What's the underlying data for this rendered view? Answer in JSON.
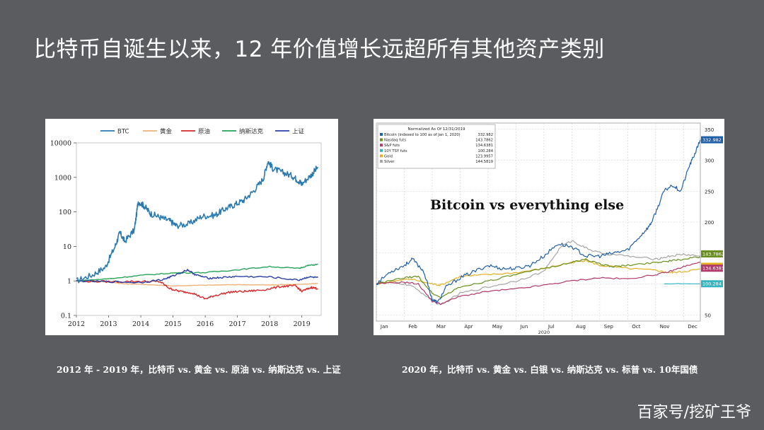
{
  "slide": {
    "title": "比特币自诞生以来，12 年价值增长远超所有其他资产类别",
    "caption_left": "2012 年 - 2019 年，比特币 vs. 黄金 vs. 原油 vs. 纳斯达克 vs. 上证",
    "caption_right": "2020 年，比特币 vs. 黄金 vs. 白银 vs. 纳斯达克 vs. 标普 vs. 10年国债",
    "watermark": "百家号/挖矿王爷"
  },
  "chart_data": [
    {
      "type": "line",
      "yscale": "log",
      "ylim": [
        0.1,
        10000
      ],
      "yticks": [
        "10000",
        "1000",
        "100",
        "10",
        "1",
        "0.1"
      ],
      "ytick_values": [
        10000,
        1000,
        100,
        10,
        1,
        0.1
      ],
      "xlim": [
        2012,
        2019.6
      ],
      "xticks": [
        "2012",
        "2013",
        "2014",
        "2015",
        "2016",
        "2017",
        "2018",
        "2019"
      ],
      "xtick_values": [
        2012,
        2013,
        2014,
        2015,
        2016,
        2017,
        2018,
        2019
      ],
      "legend_position": "top",
      "series": [
        {
          "name": "BTC",
          "color": "#2a7ab0",
          "x": [
            2012,
            2012.5,
            2012.9,
            2013.2,
            2013.35,
            2013.5,
            2013.8,
            2013.92,
            2014.1,
            2014.3,
            2014.6,
            2014.9,
            2015.1,
            2015.5,
            2015.9,
            2016.3,
            2016.6,
            2016.9,
            2017.2,
            2017.5,
            2017.8,
            2017.95,
            2018.1,
            2018.4,
            2018.7,
            2018.9,
            2019.0,
            2019.3,
            2019.5
          ],
          "values": [
            1.0,
            1.5,
            2.5,
            10,
            25,
            14,
            30,
            200,
            150,
            90,
            70,
            55,
            40,
            45,
            75,
            80,
            120,
            160,
            220,
            400,
            900,
            3000,
            1800,
            1400,
            1100,
            800,
            650,
            1200,
            2000
          ]
        },
        {
          "name": "黄金",
          "color": "#f0b27a",
          "x": [
            2012,
            2013,
            2013.5,
            2014,
            2015,
            2016,
            2017,
            2018,
            2019,
            2019.5
          ],
          "values": [
            1.0,
            0.95,
            0.82,
            0.8,
            0.72,
            0.75,
            0.78,
            0.76,
            0.8,
            0.85
          ]
        },
        {
          "name": "原油",
          "color": "#d62728",
          "x": [
            2012,
            2013,
            2014,
            2014.6,
            2014.9,
            2015.2,
            2015.6,
            2016.0,
            2016.3,
            2016.8,
            2017.3,
            2017.8,
            2018.4,
            2018.8,
            2019.0,
            2019.3,
            2019.5
          ],
          "values": [
            1.0,
            0.95,
            0.97,
            0.95,
            0.6,
            0.5,
            0.45,
            0.3,
            0.38,
            0.48,
            0.5,
            0.55,
            0.7,
            0.72,
            0.5,
            0.65,
            0.6
          ]
        },
        {
          "name": "纳斯达克",
          "color": "#27a35a",
          "x": [
            2012,
            2013,
            2014,
            2015,
            2016,
            2017,
            2018,
            2018.9,
            2019.2,
            2019.5
          ],
          "values": [
            1.0,
            1.15,
            1.45,
            1.7,
            1.75,
            2.1,
            2.6,
            2.3,
            2.8,
            3.0
          ]
        },
        {
          "name": "上证",
          "color": "#2b3fa6",
          "x": [
            2012,
            2013,
            2014,
            2014.7,
            2015.0,
            2015.45,
            2015.7,
            2016.1,
            2016.5,
            2017,
            2018,
            2018.9,
            2019.2,
            2019.5
          ],
          "values": [
            1.0,
            0.95,
            0.9,
            1.1,
            1.4,
            2.1,
            1.5,
            1.2,
            1.25,
            1.35,
            1.3,
            1.05,
            1.3,
            1.25
          ]
        }
      ]
    },
    {
      "type": "line",
      "title": "Bitcoin vs everything else",
      "legend_title": "Normalized As Of 12/31/2019",
      "ylim": [
        40,
        360
      ],
      "yticks": [
        "350",
        "300",
        "250",
        "200",
        "150",
        "100",
        "50"
      ],
      "ytick_values": [
        350,
        300,
        250,
        200,
        150,
        100,
        50
      ],
      "x_month_labels": [
        "Jan",
        "Feb",
        "Mar",
        "Apr",
        "May",
        "Jun",
        "Jul",
        "Aug",
        "Sep",
        "Oct",
        "Nov",
        "Dec"
      ],
      "x_year_label": "2020",
      "xlim": [
        0,
        11.6
      ],
      "legend_position": "top-left",
      "series": [
        {
          "name": "Bitcoin (indexed to 100 as of Jan 1, 2020)",
          "last_value": "332.982",
          "color": "#1f5fa8",
          "x": [
            0,
            0.5,
            1.0,
            1.3,
            1.7,
            2.0,
            2.2,
            2.5,
            3.0,
            3.5,
            4.0,
            4.5,
            5.0,
            5.5,
            6.0,
            6.5,
            7.0,
            7.5,
            8.0,
            8.5,
            9.0,
            9.5,
            9.8,
            10.0,
            10.3,
            10.6,
            10.9,
            11.2,
            11.4,
            11.6
          ],
          "values": [
            100,
            120,
            130,
            140,
            120,
            75,
            70,
            95,
            110,
            120,
            130,
            125,
            125,
            130,
            145,
            165,
            160,
            145,
            145,
            150,
            155,
            180,
            195,
            215,
            250,
            260,
            250,
            290,
            310,
            333
          ]
        },
        {
          "name": "Nasdaq futs",
          "last_value": "143.7862",
          "color": "#6a8f1f",
          "x": [
            0,
            1.0,
            1.5,
            2.0,
            2.3,
            3.0,
            4.0,
            5.0,
            6.0,
            7.0,
            7.5,
            8.0,
            8.5,
            9.0,
            10.0,
            10.5,
            11.0,
            11.6
          ],
          "values": [
            100,
            110,
            112,
            85,
            78,
            95,
            105,
            115,
            125,
            135,
            140,
            132,
            128,
            130,
            135,
            137,
            140,
            144
          ]
        },
        {
          "name": "S&P futs",
          "last_value": "134.6381",
          "color": "#b03a6b",
          "x": [
            0,
            1.0,
            1.5,
            2.0,
            2.3,
            3.0,
            4.0,
            5.0,
            6.0,
            7.0,
            8.0,
            9.0,
            10.0,
            10.5,
            11.0,
            11.6
          ],
          "values": [
            100,
            103,
            100,
            72,
            68,
            80,
            88,
            92,
            98,
            105,
            110,
            108,
            115,
            120,
            128,
            135
          ]
        },
        {
          "name": "10Y TSY futs",
          "last_value": "100.284",
          "color": "#36b6c0",
          "x": [
            10.3,
            10.8,
            11.2,
            11.6
          ],
          "values": [
            100,
            100.5,
            100.2,
            100.3
          ]
        },
        {
          "name": "Gold",
          "last_value": "123.9957",
          "color": "#e0b020",
          "x": [
            0,
            0.6,
            1.2,
            2.0,
            2.3,
            3.0,
            4.0,
            5.0,
            6.0,
            7.0,
            7.5,
            8.0,
            9.0,
            10.0,
            10.5,
            11.0,
            11.6
          ],
          "values": [
            100,
            104,
            108,
            100,
            98,
            112,
            115,
            118,
            125,
            135,
            138,
            130,
            125,
            122,
            118,
            120,
            124
          ]
        },
        {
          "name": "Silver",
          "last_value": "144.5819",
          "color": "#a6a6a6",
          "x": [
            0,
            0.6,
            1.2,
            2.0,
            2.3,
            3.0,
            4.0,
            5.0,
            6.0,
            6.6,
            7.0,
            7.5,
            8.0,
            9.0,
            10.0,
            10.5,
            11.0,
            11.6
          ],
          "values": [
            100,
            103,
            98,
            75,
            65,
            85,
            95,
            105,
            120,
            160,
            170,
            158,
            150,
            145,
            140,
            145,
            148,
            145
          ]
        }
      ]
    }
  ]
}
